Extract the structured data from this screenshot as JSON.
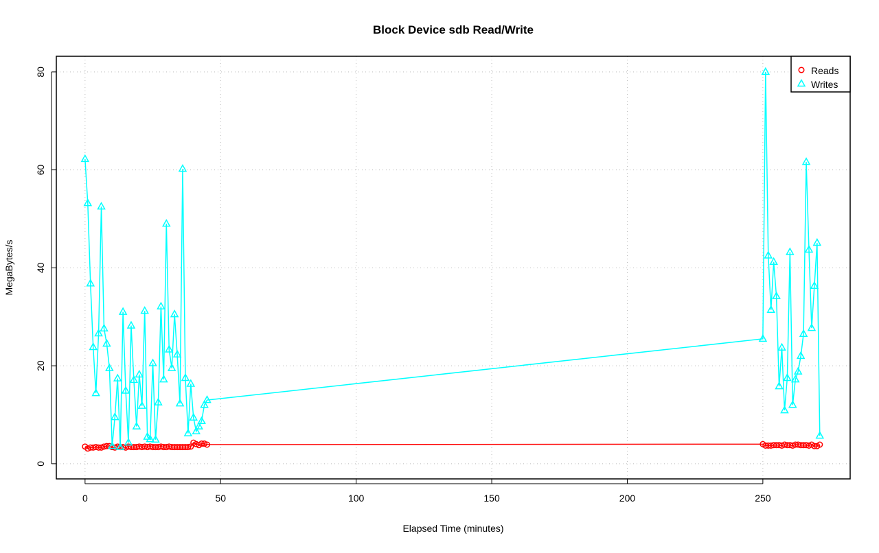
{
  "chart_data": {
    "type": "line",
    "title": "Block Device sdb Read/Write",
    "x_label": "Elapsed Time (minutes)",
    "y_label": "MegaBytes/s",
    "x": [
      0,
      1,
      2,
      3,
      4,
      5,
      6,
      7,
      8,
      9,
      10,
      11,
      12,
      13,
      14,
      15,
      16,
      17,
      18,
      19,
      20,
      21,
      22,
      23,
      24,
      25,
      26,
      27,
      28,
      29,
      30,
      31,
      32,
      33,
      34,
      35,
      36,
      37,
      38,
      39,
      40,
      41,
      42,
      43,
      44,
      45,
      250,
      251,
      252,
      253,
      254,
      255,
      256,
      257,
      258,
      259,
      260,
      261,
      262,
      263,
      264,
      265,
      266,
      267,
      268,
      269,
      270,
      271
    ],
    "series": [
      {
        "name": "Reads",
        "color": "#ff0000",
        "marker": "circle",
        "values": [
          3.5,
          3.1,
          3.3,
          3.3,
          3.4,
          3.3,
          3.3,
          3.5,
          3.6,
          3.6,
          3.4,
          3.3,
          3.5,
          3.4,
          3.4,
          3.3,
          3.5,
          3.4,
          3.4,
          3.4,
          3.5,
          3.4,
          3.5,
          3.4,
          3.5,
          3.4,
          3.4,
          3.4,
          3.5,
          3.4,
          3.4,
          3.5,
          3.4,
          3.4,
          3.4,
          3.4,
          3.4,
          3.4,
          3.4,
          3.5,
          4.3,
          4.0,
          3.8,
          4.1,
          4.1,
          3.9,
          4.0,
          3.7,
          3.7,
          3.7,
          3.8,
          3.8,
          3.8,
          3.7,
          3.9,
          3.8,
          3.8,
          3.7,
          3.9,
          3.9,
          3.8,
          3.8,
          3.8,
          3.7,
          3.9,
          3.6,
          3.6,
          3.9
        ]
      },
      {
        "name": "Writes",
        "color": "#00ffff",
        "marker": "triangle",
        "values": [
          62.2,
          53.2,
          36.8,
          23.8,
          14.4,
          26.6,
          52.5,
          27.6,
          24.5,
          19.5,
          3.6,
          9.5,
          17.4,
          3.4,
          31.0,
          14.9,
          4.3,
          28.2,
          17.1,
          7.6,
          18.2,
          11.8,
          31.2,
          5.5,
          5.0,
          20.5,
          4.9,
          12.5,
          32.1,
          17.2,
          49.0,
          23.3,
          19.5,
          30.5,
          22.3,
          12.3,
          60.2,
          17.5,
          6.2,
          16.3,
          9.4,
          6.6,
          7.6,
          8.7,
          12.0,
          13.0,
          25.5,
          80.0,
          42.5,
          31.4,
          41.2,
          34.2,
          15.8,
          23.7,
          10.9,
          17.5,
          43.2,
          12.0,
          17.2,
          18.8,
          22.0,
          26.5,
          61.6,
          43.7,
          27.7,
          36.3,
          45.1,
          5.7
        ]
      }
    ],
    "xlim": [
      -10.6,
      282.2
    ],
    "ylim": [
      -3.1,
      83.2
    ],
    "xticks": [
      0,
      50,
      100,
      150,
      200,
      250
    ],
    "yticks": [
      0,
      20,
      40,
      60,
      80
    ],
    "grid": true,
    "legend": "top-right"
  }
}
